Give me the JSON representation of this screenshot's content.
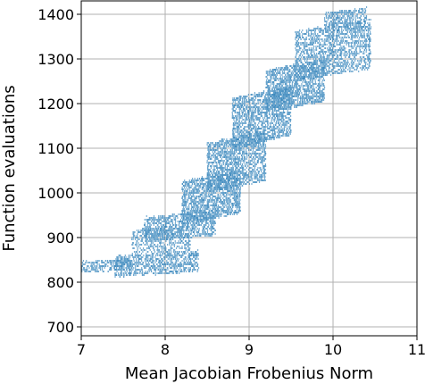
{
  "chart_data": {
    "type": "scatter",
    "xlabel": "Mean Jacobian Frobenius Norm",
    "ylabel": "Function evaluations",
    "xlim": [
      7,
      11
    ],
    "ylim": [
      680,
      1430
    ],
    "xticks": [
      7,
      8,
      9,
      10,
      11
    ],
    "yticks": [
      700,
      800,
      900,
      1000,
      1100,
      1200,
      1300,
      1400
    ],
    "grid": true,
    "marker_color": "#1f77b4",
    "y_step": 4,
    "clusters": [
      {
        "x_range": [
          7.0,
          7.6
        ],
        "y_range": [
          822,
          852
        ],
        "points": 260
      },
      {
        "x_range": [
          7.4,
          8.4
        ],
        "y_range": [
          812,
          872
        ],
        "points": 900
      },
      {
        "x_range": [
          7.6,
          8.3
        ],
        "y_range": [
          860,
          930
        ],
        "points": 450
      },
      {
        "x_range": [
          7.75,
          8.6
        ],
        "y_range": [
          890,
          960
        ],
        "points": 900
      },
      {
        "x_range": [
          8.2,
          8.9
        ],
        "y_range": [
          930,
          1050
        ],
        "points": 1500
      },
      {
        "x_range": [
          8.5,
          9.2
        ],
        "y_range": [
          1000,
          1140
        ],
        "points": 1600
      },
      {
        "x_range": [
          8.8,
          9.5
        ],
        "y_range": [
          1100,
          1240
        ],
        "points": 1600
      },
      {
        "x_range": [
          9.2,
          9.9
        ],
        "y_range": [
          1180,
          1300
        ],
        "points": 1500
      },
      {
        "x_range": [
          9.55,
          10.45
        ],
        "y_range": [
          1250,
          1390
        ],
        "points": 1600
      },
      {
        "x_range": [
          9.9,
          10.4
        ],
        "y_range": [
          1360,
          1415
        ],
        "points": 400
      }
    ]
  }
}
